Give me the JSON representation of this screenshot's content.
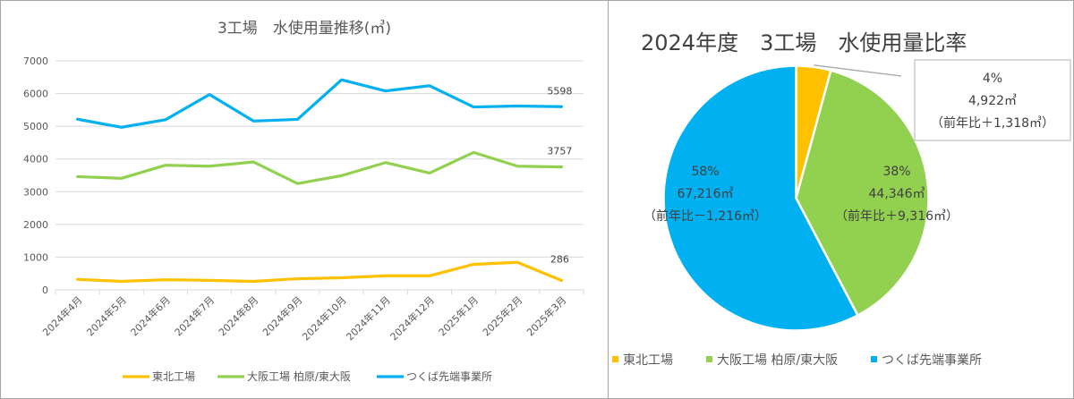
{
  "chart_data": [
    {
      "type": "line",
      "title": "3工場　水使用量推移(㎥)",
      "xlabel": "",
      "ylabel": "",
      "ylim": [
        0,
        7000
      ],
      "yticks": [
        0,
        1000,
        2000,
        3000,
        4000,
        5000,
        6000,
        7000
      ],
      "ytick_labels": [
        "0",
        "1000",
        "2000",
        "3000",
        "4000",
        "5000",
        "6000",
        "7000"
      ],
      "grid": true,
      "legend_position": "bottom",
      "categories": [
        "2024年4月",
        "2024年5月",
        "2024年6月",
        "2024年7月",
        "2024年8月",
        "2024年9月",
        "2024年10月",
        "2024年11月",
        "2024年12月",
        "2025年1月",
        "2025年2月",
        "2025年3月"
      ],
      "series": [
        {
          "name": "東北工場",
          "color": "#FFC000",
          "values": [
            320,
            260,
            310,
            290,
            260,
            340,
            370,
            430,
            430,
            780,
            840,
            286
          ],
          "end_label": "286"
        },
        {
          "name": "大阪工場 柏原/東大阪",
          "color": "#92D050",
          "values": [
            3460,
            3410,
            3810,
            3780,
            3910,
            3250,
            3490,
            3890,
            3570,
            4200,
            3780,
            3757
          ],
          "end_label": "3757"
        },
        {
          "name": "つくば先端事業所",
          "color": "#00B0F0",
          "values": [
            5216,
            4970,
            5200,
            5970,
            5160,
            5210,
            6420,
            6080,
            6240,
            5590,
            5620,
            5598
          ],
          "end_label": "5598"
        }
      ]
    },
    {
      "type": "pie",
      "title": "2024年度　3工場　水使用量比率",
      "legend_position": "bottom",
      "slices": [
        {
          "name": "東北工場",
          "color": "#FFC000",
          "value": 4922,
          "percent_label": "4%",
          "value_label": "4,922㎥",
          "yoy_label": "（前年比＋1,318㎥）"
        },
        {
          "name": "大阪工場 柏原/東大阪",
          "color": "#92D050",
          "value": 44346,
          "percent_label": "38%",
          "value_label": "44,346㎥",
          "yoy_label": "（前年比＋9,316㎥）"
        },
        {
          "name": "つくば先端事業所",
          "color": "#00B0F0",
          "value": 67216,
          "percent_label": "58%",
          "value_label": "67,216㎥",
          "yoy_label": "（前年比－1,216㎥）"
        }
      ]
    }
  ]
}
